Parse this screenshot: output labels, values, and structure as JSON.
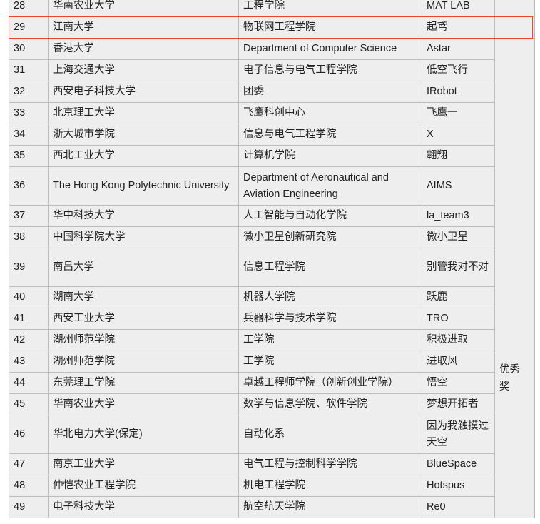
{
  "table": {
    "rows": [
      {
        "no": "28",
        "university": "华南农业大学",
        "college": "工程学院",
        "team": "MAT LAB"
      },
      {
        "no": "29",
        "university": "江南大学",
        "college": "物联网工程学院",
        "team": "起鸢"
      },
      {
        "no": "30",
        "university": "香港大学",
        "college": "Department of Computer Science",
        "team": "Astar"
      },
      {
        "no": "31",
        "university": "上海交通大学",
        "college": "电子信息与电气工程学院",
        "team": "低空飞行"
      },
      {
        "no": "32",
        "university": "西安电子科技大学",
        "college": "团委",
        "team": "IRobot"
      },
      {
        "no": "33",
        "university": "北京理工大学",
        "college": "飞鹰科创中心",
        "team": "飞鹰一"
      },
      {
        "no": "34",
        "university": "浙大城市学院",
        "college": "信息与电气工程学院",
        "team": "X"
      },
      {
        "no": "35",
        "university": "西北工业大学",
        "college": "计算机学院",
        "team": "翱翔"
      },
      {
        "no": "36",
        "university": "The Hong Kong Polytechnic University",
        "college": "Department of Aeronautical and Aviation Engineering",
        "team": "AIMS"
      },
      {
        "no": "37",
        "university": "华中科技大学",
        "college": "人工智能与自动化学院",
        "team": "la_team3"
      },
      {
        "no": "38",
        "university": "中国科学院大学",
        "college": "微小卫星创新研究院",
        "team": "微小卫星"
      },
      {
        "no": "39",
        "university": "南昌大学",
        "college": "信息工程学院",
        "team": "别管我对不对"
      },
      {
        "no": "40",
        "university": "湖南大学",
        "college": "机器人学院",
        "team": "跃鹿"
      },
      {
        "no": "41",
        "university": "西安工业大学",
        "college": "兵器科学与技术学院",
        "team": "TRO"
      },
      {
        "no": "42",
        "university": "湖州师范学院",
        "college": "工学院",
        "team": "积极进取"
      },
      {
        "no": "43",
        "university": "湖州师范学院",
        "college": "工学院",
        "team": "进取风"
      },
      {
        "no": "44",
        "university": "东莞理工学院",
        "college": "卓越工程师学院（创新创业学院）",
        "team": "悟空"
      },
      {
        "no": "45",
        "university": "华南农业大学",
        "college": "数学与信息学院、软件学院",
        "team": "梦想开拓者"
      },
      {
        "no": "46",
        "university": "华北电力大学(保定)",
        "college": "自动化系",
        "team": "因为我触摸过天空"
      },
      {
        "no": "47",
        "university": "南京工业大学",
        "college": "电气工程与控制科学学院",
        "team": "BlueSpace"
      },
      {
        "no": "48",
        "university": "仲恺农业工程学院",
        "college": "机电工程学院",
        "team": "Hotspus"
      },
      {
        "no": "49",
        "university": "电子科技大学",
        "college": "航空航天学院",
        "team": "Re0"
      }
    ],
    "award": "优秀奖",
    "highlighted_row": "29",
    "highlight_color": "#e8452f"
  }
}
